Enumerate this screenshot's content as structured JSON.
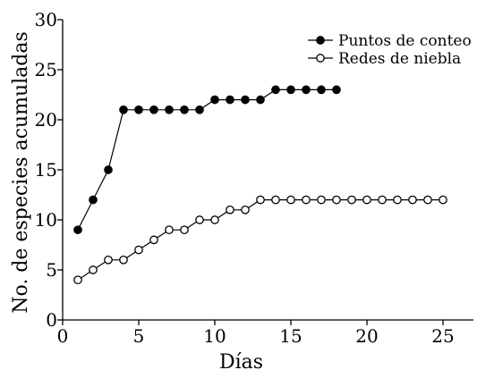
{
  "chart_data": {
    "type": "line",
    "xlabel": "Días",
    "ylabel": "No. de especies acumuladas",
    "xlim": [
      0,
      27
    ],
    "ylim": [
      0,
      30
    ],
    "xticks": [
      0,
      5,
      10,
      15,
      20,
      25
    ],
    "yticks": [
      0,
      5,
      10,
      15,
      20,
      25,
      30
    ],
    "grid": false,
    "legend_position": "top-right",
    "series": [
      {
        "name": "Puntos de conteo",
        "marker": "filled-circle",
        "color": "#000000",
        "x": [
          1,
          2,
          3,
          4,
          5,
          6,
          7,
          8,
          9,
          10,
          11,
          12,
          13,
          14,
          15,
          16,
          17,
          18
        ],
        "values": [
          9,
          12,
          15,
          21,
          21,
          21,
          21,
          21,
          21,
          22,
          22,
          22,
          22,
          23,
          23,
          23,
          23,
          23
        ]
      },
      {
        "name": "Redes de niebla",
        "marker": "open-circle",
        "color": "#000000",
        "x": [
          1,
          2,
          3,
          4,
          5,
          6,
          7,
          8,
          9,
          10,
          11,
          12,
          13,
          14,
          15,
          16,
          17,
          18,
          19,
          20,
          21,
          22,
          23,
          24,
          25
        ],
        "values": [
          4,
          5,
          6,
          6,
          7,
          8,
          9,
          9,
          10,
          10,
          11,
          11,
          12,
          12,
          12,
          12,
          12,
          12,
          12,
          12,
          12,
          12,
          12,
          12,
          12
        ]
      }
    ]
  }
}
